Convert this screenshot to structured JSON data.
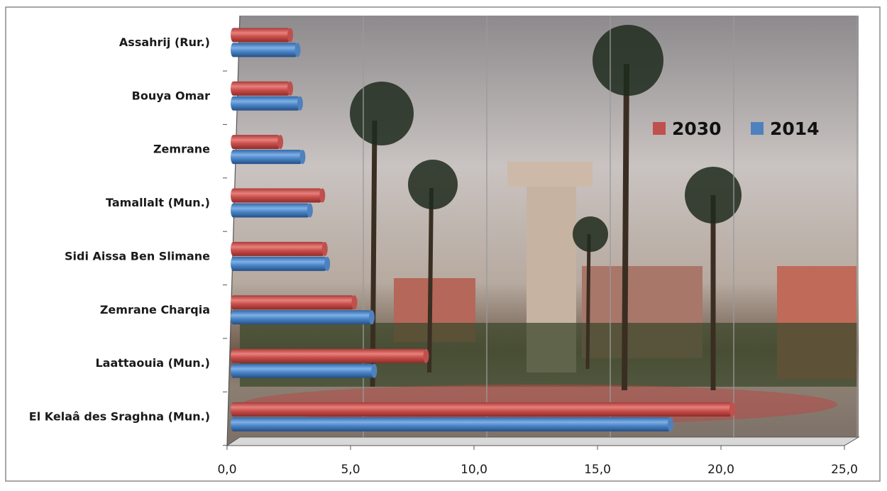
{
  "chart_data": {
    "type": "bar",
    "orientation": "horizontal",
    "categories": [
      "El Kelaâ des Sraghna (Mun.)",
      "Laattaouia (Mun.)",
      "Zemrane Charqia",
      "Sidi Aissa Ben Slimane",
      "Tamallalt (Mun.)",
      "Zemrane",
      "Bouya Omar",
      "Assahrij (Rur.)"
    ],
    "series": [
      {
        "name": "2030",
        "color": "#c0504d",
        "values": [
          20.2,
          7.8,
          4.9,
          3.7,
          3.6,
          1.9,
          2.3,
          2.3
        ]
      },
      {
        "name": "2014",
        "color": "#4f81bd",
        "values": [
          17.7,
          5.7,
          5.6,
          3.8,
          3.1,
          2.8,
          2.7,
          2.6
        ]
      }
    ],
    "xlim": [
      0,
      25
    ],
    "xticks": [
      {
        "value": 0,
        "label": "0,0"
      },
      {
        "value": 5,
        "label": "5,0"
      },
      {
        "value": 10,
        "label": "10,0"
      },
      {
        "value": 15,
        "label": "15,0"
      },
      {
        "value": 20,
        "label": "20,0"
      },
      {
        "value": 25,
        "label": "25,0"
      }
    ],
    "grid": true,
    "legend": "upper right"
  }
}
